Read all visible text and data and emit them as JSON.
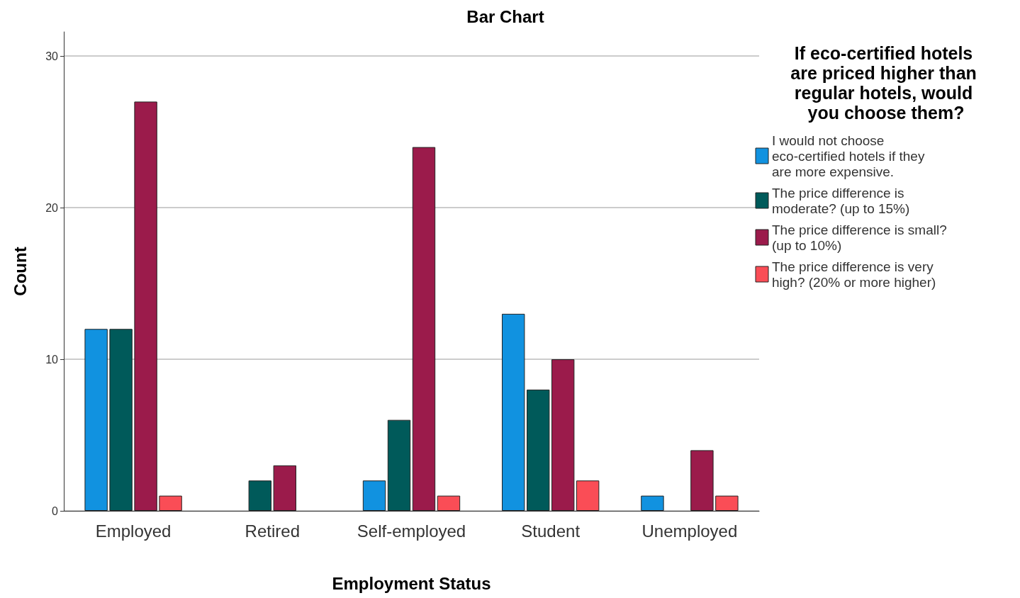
{
  "chart_data": {
    "type": "bar",
    "title": "Bar Chart",
    "xlabel": "Employment Status",
    "ylabel": "Count",
    "legend_title": "If eco-certified hotels are priced higher than regular hotels, would you choose them?",
    "categories": [
      "Employed",
      "Retired",
      "Self-employed",
      "Student",
      "Unemployed"
    ],
    "series": [
      {
        "name": "I would not choose eco-certified hotels if they are more expensive.",
        "color": "#1192e0",
        "values": [
          12,
          null,
          2,
          13,
          1
        ]
      },
      {
        "name": "The price difference is moderate? (up to 15%)",
        "color": "#005a5a",
        "values": [
          12,
          2,
          6,
          8,
          null
        ]
      },
      {
        "name": "The price difference is small? (up to 10%)",
        "color": "#9b1b4b",
        "values": [
          27,
          3,
          24,
          10,
          4
        ]
      },
      {
        "name": "The price difference is very high? (20% or more higher)",
        "color": "#fa4d56",
        "values": [
          1,
          null,
          1,
          2,
          1
        ]
      }
    ],
    "ylim": [
      0,
      31.6
    ],
    "yticks": [
      0,
      10,
      20,
      30
    ],
    "grid": "y",
    "legend": "top right"
  }
}
